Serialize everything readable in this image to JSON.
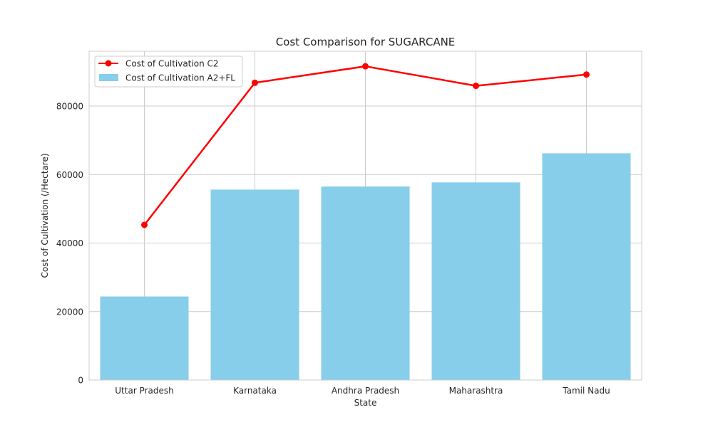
{
  "chart_data": {
    "type": "bar",
    "title": "Cost Comparison for SUGARCANE",
    "xlabel": "State",
    "ylabel": "Cost of Cultivation (/Hectare)",
    "categories": [
      "Uttar Pradesh",
      "Karnataka",
      "Andhra Pradesh",
      "Maharashtra",
      "Tamil Nadu"
    ],
    "ylim": [
      0,
      96000
    ],
    "yticks": [
      0,
      20000,
      40000,
      60000,
      80000
    ],
    "ytick_labels": [
      "0",
      "20000",
      "40000",
      "60000",
      "80000"
    ],
    "grid": true,
    "legend_position": "top-left",
    "series": [
      {
        "name": "Cost of Cultivation C2",
        "kind": "line",
        "color": "#ff0000",
        "values": [
          45300,
          86800,
          91600,
          85900,
          89200
        ]
      },
      {
        "name": "Cost of Cultivation A2+FL",
        "kind": "bar",
        "color": "#87ceeb",
        "values": [
          24400,
          55600,
          56500,
          57700,
          66200
        ]
      }
    ]
  }
}
